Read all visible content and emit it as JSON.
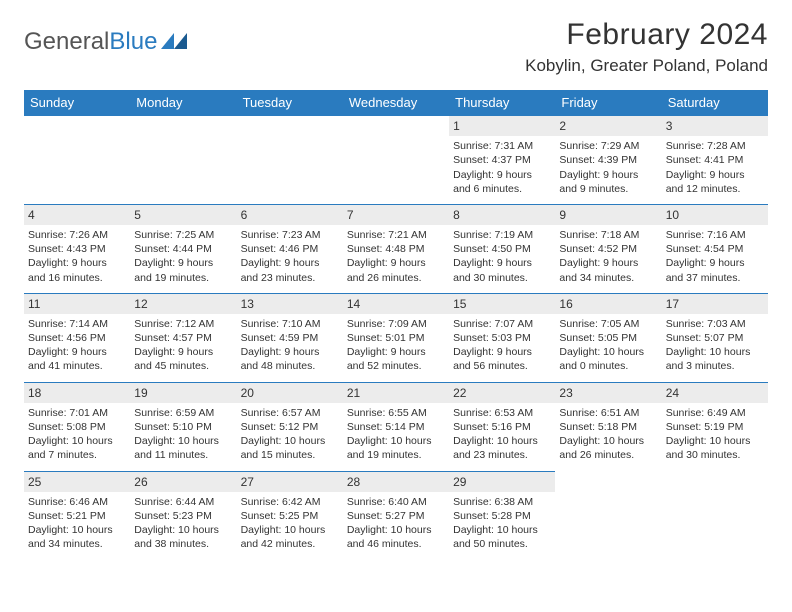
{
  "logo": {
    "text_gray": "General",
    "text_blue": "Blue"
  },
  "title": "February 2024",
  "location": "Kobylin, Greater Poland, Poland",
  "colors": {
    "header_bg": "#2a7bbf",
    "header_fg": "#ffffff",
    "daynum_bg": "#ececec",
    "border": "#2a7bbf",
    "text": "#333333"
  },
  "day_labels": [
    "Sunday",
    "Monday",
    "Tuesday",
    "Wednesday",
    "Thursday",
    "Friday",
    "Saturday"
  ],
  "weeks": [
    [
      null,
      null,
      null,
      null,
      {
        "n": "1",
        "sr": "7:31 AM",
        "ss": "4:37 PM",
        "dl": "9 hours and 6 minutes."
      },
      {
        "n": "2",
        "sr": "7:29 AM",
        "ss": "4:39 PM",
        "dl": "9 hours and 9 minutes."
      },
      {
        "n": "3",
        "sr": "7:28 AM",
        "ss": "4:41 PM",
        "dl": "9 hours and 12 minutes."
      }
    ],
    [
      {
        "n": "4",
        "sr": "7:26 AM",
        "ss": "4:43 PM",
        "dl": "9 hours and 16 minutes."
      },
      {
        "n": "5",
        "sr": "7:25 AM",
        "ss": "4:44 PM",
        "dl": "9 hours and 19 minutes."
      },
      {
        "n": "6",
        "sr": "7:23 AM",
        "ss": "4:46 PM",
        "dl": "9 hours and 23 minutes."
      },
      {
        "n": "7",
        "sr": "7:21 AM",
        "ss": "4:48 PM",
        "dl": "9 hours and 26 minutes."
      },
      {
        "n": "8",
        "sr": "7:19 AM",
        "ss": "4:50 PM",
        "dl": "9 hours and 30 minutes."
      },
      {
        "n": "9",
        "sr": "7:18 AM",
        "ss": "4:52 PM",
        "dl": "9 hours and 34 minutes."
      },
      {
        "n": "10",
        "sr": "7:16 AM",
        "ss": "4:54 PM",
        "dl": "9 hours and 37 minutes."
      }
    ],
    [
      {
        "n": "11",
        "sr": "7:14 AM",
        "ss": "4:56 PM",
        "dl": "9 hours and 41 minutes."
      },
      {
        "n": "12",
        "sr": "7:12 AM",
        "ss": "4:57 PM",
        "dl": "9 hours and 45 minutes."
      },
      {
        "n": "13",
        "sr": "7:10 AM",
        "ss": "4:59 PM",
        "dl": "9 hours and 48 minutes."
      },
      {
        "n": "14",
        "sr": "7:09 AM",
        "ss": "5:01 PM",
        "dl": "9 hours and 52 minutes."
      },
      {
        "n": "15",
        "sr": "7:07 AM",
        "ss": "5:03 PM",
        "dl": "9 hours and 56 minutes."
      },
      {
        "n": "16",
        "sr": "7:05 AM",
        "ss": "5:05 PM",
        "dl": "10 hours and 0 minutes."
      },
      {
        "n": "17",
        "sr": "7:03 AM",
        "ss": "5:07 PM",
        "dl": "10 hours and 3 minutes."
      }
    ],
    [
      {
        "n": "18",
        "sr": "7:01 AM",
        "ss": "5:08 PM",
        "dl": "10 hours and 7 minutes."
      },
      {
        "n": "19",
        "sr": "6:59 AM",
        "ss": "5:10 PM",
        "dl": "10 hours and 11 minutes."
      },
      {
        "n": "20",
        "sr": "6:57 AM",
        "ss": "5:12 PM",
        "dl": "10 hours and 15 minutes."
      },
      {
        "n": "21",
        "sr": "6:55 AM",
        "ss": "5:14 PM",
        "dl": "10 hours and 19 minutes."
      },
      {
        "n": "22",
        "sr": "6:53 AM",
        "ss": "5:16 PM",
        "dl": "10 hours and 23 minutes."
      },
      {
        "n": "23",
        "sr": "6:51 AM",
        "ss": "5:18 PM",
        "dl": "10 hours and 26 minutes."
      },
      {
        "n": "24",
        "sr": "6:49 AM",
        "ss": "5:19 PM",
        "dl": "10 hours and 30 minutes."
      }
    ],
    [
      {
        "n": "25",
        "sr": "6:46 AM",
        "ss": "5:21 PM",
        "dl": "10 hours and 34 minutes."
      },
      {
        "n": "26",
        "sr": "6:44 AM",
        "ss": "5:23 PM",
        "dl": "10 hours and 38 minutes."
      },
      {
        "n": "27",
        "sr": "6:42 AM",
        "ss": "5:25 PM",
        "dl": "10 hours and 42 minutes."
      },
      {
        "n": "28",
        "sr": "6:40 AM",
        "ss": "5:27 PM",
        "dl": "10 hours and 46 minutes."
      },
      {
        "n": "29",
        "sr": "6:38 AM",
        "ss": "5:28 PM",
        "dl": "10 hours and 50 minutes."
      },
      null,
      null
    ]
  ],
  "labels": {
    "sunrise": "Sunrise:",
    "sunset": "Sunset:",
    "daylight": "Daylight:"
  }
}
